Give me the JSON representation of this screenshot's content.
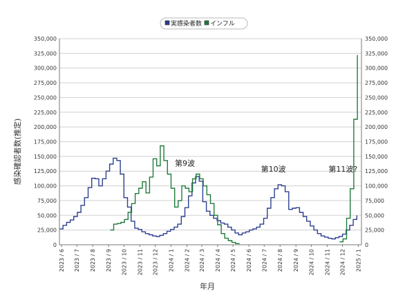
{
  "chart_data": {
    "type": "line",
    "xlabel": "年月",
    "ylabel": "感染確認者数(推定)",
    "ylim": [
      0,
      350000
    ],
    "y_ticks": [
      "0",
      "25,000",
      "50,000",
      "75,000",
      "100,000",
      "125,000",
      "150,000",
      "175,000",
      "200,000",
      "225,000",
      "250,000",
      "275,000",
      "300,000",
      "325,000",
      "350,000"
    ],
    "x_range": [
      "2023-05-28",
      "2025-01-07"
    ],
    "x_ticks": [
      {
        "date": "2023-06-01",
        "label": "2023 / 6"
      },
      {
        "date": "2023-07-01",
        "label": "2023 / 7"
      },
      {
        "date": "2023-08-01",
        "label": "2023 / 8"
      },
      {
        "date": "2023-09-01",
        "label": "2023 / 9"
      },
      {
        "date": "2023-10-01",
        "label": "2023 / 10"
      },
      {
        "date": "2023-11-01",
        "label": "2023 / 11"
      },
      {
        "date": "2023-12-01",
        "label": "2023 / 12"
      },
      {
        "date": "2024-01-01",
        "label": "2024 / 1"
      },
      {
        "date": "2024-02-01",
        "label": "2024 / 2"
      },
      {
        "date": "2024-03-01",
        "label": "2024 / 3"
      },
      {
        "date": "2024-04-01",
        "label": "2024 / 4"
      },
      {
        "date": "2024-05-01",
        "label": "2024 / 5"
      },
      {
        "date": "2024-06-01",
        "label": "2024 / 6"
      },
      {
        "date": "2024-07-01",
        "label": "2024 / 7"
      },
      {
        "date": "2024-08-01",
        "label": "2024 / 8"
      },
      {
        "date": "2024-09-01",
        "label": "2024 / 9"
      },
      {
        "date": "2024-10-01",
        "label": "2024 / 10"
      },
      {
        "date": "2024-11-01",
        "label": "2024 / 11"
      },
      {
        "date": "2024-12-01",
        "label": "2024 / 12"
      },
      {
        "date": "2025-01-01",
        "label": "2025 / 1"
      }
    ],
    "grid": true,
    "legend_position": "top-center",
    "series": [
      {
        "name": "実感染者数",
        "color": "#2b3f8f",
        "points": [
          [
            "2023-05-28",
            27000
          ],
          [
            "2023-06-04",
            33000
          ],
          [
            "2023-06-11",
            38000
          ],
          [
            "2023-06-18",
            42000
          ],
          [
            "2023-06-25",
            48000
          ],
          [
            "2023-07-02",
            55000
          ],
          [
            "2023-07-09",
            67000
          ],
          [
            "2023-07-16",
            80000
          ],
          [
            "2023-07-23",
            97000
          ],
          [
            "2023-07-30",
            113000
          ],
          [
            "2023-08-06",
            112000
          ],
          [
            "2023-08-13",
            100000
          ],
          [
            "2023-08-20",
            112000
          ],
          [
            "2023-08-27",
            125000
          ],
          [
            "2023-09-03",
            137000
          ],
          [
            "2023-09-10",
            147000
          ],
          [
            "2023-09-17",
            143000
          ],
          [
            "2023-09-24",
            120000
          ],
          [
            "2023-10-01",
            80000
          ],
          [
            "2023-10-08",
            64000
          ],
          [
            "2023-10-15",
            40000
          ],
          [
            "2023-10-22",
            28000
          ],
          [
            "2023-10-29",
            26000
          ],
          [
            "2023-11-05",
            22000
          ],
          [
            "2023-11-12",
            19000
          ],
          [
            "2023-11-19",
            17000
          ],
          [
            "2023-11-26",
            15000
          ],
          [
            "2023-12-03",
            14000
          ],
          [
            "2023-12-10",
            16000
          ],
          [
            "2023-12-17",
            19000
          ],
          [
            "2023-12-24",
            23000
          ],
          [
            "2023-12-31",
            26000
          ],
          [
            "2024-01-07",
            30000
          ],
          [
            "2024-01-14",
            35000
          ],
          [
            "2024-01-21",
            48000
          ],
          [
            "2024-01-28",
            63000
          ],
          [
            "2024-02-04",
            83000
          ],
          [
            "2024-02-11",
            105000
          ],
          [
            "2024-02-18",
            116000
          ],
          [
            "2024-02-25",
            108000
          ],
          [
            "2024-03-03",
            73000
          ],
          [
            "2024-03-10",
            57000
          ],
          [
            "2024-03-17",
            50000
          ],
          [
            "2024-03-24",
            45000
          ],
          [
            "2024-03-31",
            41000
          ],
          [
            "2024-04-07",
            37000
          ],
          [
            "2024-04-14",
            35000
          ],
          [
            "2024-04-21",
            30000
          ],
          [
            "2024-04-28",
            25000
          ],
          [
            "2024-05-05",
            20000
          ],
          [
            "2024-05-12",
            17000
          ],
          [
            "2024-05-19",
            20000
          ],
          [
            "2024-05-26",
            22000
          ],
          [
            "2024-06-02",
            25000
          ],
          [
            "2024-06-09",
            27000
          ],
          [
            "2024-06-16",
            30000
          ],
          [
            "2024-06-23",
            35000
          ],
          [
            "2024-06-30",
            45000
          ],
          [
            "2024-07-07",
            62000
          ],
          [
            "2024-07-14",
            80000
          ],
          [
            "2024-07-21",
            95000
          ],
          [
            "2024-07-28",
            102000
          ],
          [
            "2024-08-04",
            100000
          ],
          [
            "2024-08-11",
            90000
          ],
          [
            "2024-08-18",
            60000
          ],
          [
            "2024-08-25",
            62000
          ],
          [
            "2024-09-01",
            63000
          ],
          [
            "2024-09-08",
            55000
          ],
          [
            "2024-09-15",
            48000
          ],
          [
            "2024-09-22",
            40000
          ],
          [
            "2024-09-29",
            32000
          ],
          [
            "2024-10-06",
            25000
          ],
          [
            "2024-10-13",
            19000
          ],
          [
            "2024-10-20",
            15000
          ],
          [
            "2024-10-27",
            13000
          ],
          [
            "2024-11-03",
            11000
          ],
          [
            "2024-11-10",
            10000
          ],
          [
            "2024-11-17",
            12000
          ],
          [
            "2024-11-24",
            14000
          ],
          [
            "2024-12-01",
            18000
          ],
          [
            "2024-12-08",
            25000
          ],
          [
            "2024-12-15",
            33000
          ],
          [
            "2024-12-22",
            43000
          ],
          [
            "2024-12-29",
            50000
          ]
        ]
      },
      {
        "name": "インフル",
        "color": "#1f7a3a",
        "points": [
          [
            "2023-09-04",
            25000
          ],
          [
            "2023-09-11",
            35000
          ],
          [
            "2023-09-18",
            36000
          ],
          [
            "2023-09-25",
            38000
          ],
          [
            "2023-10-02",
            43000
          ],
          [
            "2023-10-09",
            55000
          ],
          [
            "2023-10-16",
            70000
          ],
          [
            "2023-10-23",
            87000
          ],
          [
            "2023-10-30",
            96000
          ],
          [
            "2023-11-06",
            107000
          ],
          [
            "2023-11-13",
            88000
          ],
          [
            "2023-11-20",
            115000
          ],
          [
            "2023-11-27",
            146000
          ],
          [
            "2023-12-04",
            134000
          ],
          [
            "2023-12-11",
            168000
          ],
          [
            "2023-12-18",
            143000
          ],
          [
            "2023-12-25",
            120000
          ],
          [
            "2024-01-01",
            96000
          ],
          [
            "2024-01-08",
            64000
          ],
          [
            "2024-01-15",
            75000
          ],
          [
            "2024-01-22",
            100000
          ],
          [
            "2024-01-29",
            96000
          ],
          [
            "2024-02-05",
            90000
          ],
          [
            "2024-02-12",
            112000
          ],
          [
            "2024-02-19",
            120000
          ],
          [
            "2024-02-26",
            112000
          ],
          [
            "2024-03-04",
            100000
          ],
          [
            "2024-03-11",
            85000
          ],
          [
            "2024-03-18",
            70000
          ],
          [
            "2024-03-25",
            50000
          ],
          [
            "2024-04-01",
            34000
          ],
          [
            "2024-04-08",
            19000
          ],
          [
            "2024-04-15",
            11000
          ],
          [
            "2024-04-22",
            7000
          ],
          [
            "2024-04-29",
            4000
          ],
          [
            "2024-05-06",
            2000
          ],
          [
            "2024-05-13",
            1000
          ],
          null,
          [
            "2024-11-25",
            5000
          ],
          [
            "2024-12-02",
            10000
          ],
          [
            "2024-12-09",
            45000
          ],
          [
            "2024-12-16",
            95000
          ],
          [
            "2024-12-23",
            213000
          ],
          [
            "2024-12-30",
            322000
          ]
        ]
      }
    ],
    "annotations": [
      {
        "text": "第9波",
        "date": "2024-01-28",
        "value": 134000
      },
      {
        "text": "第10波",
        "date": "2024-07-19",
        "value": 124000
      },
      {
        "text": "第11波?",
        "date": "2024-12-02",
        "value": 124000
      }
    ]
  }
}
